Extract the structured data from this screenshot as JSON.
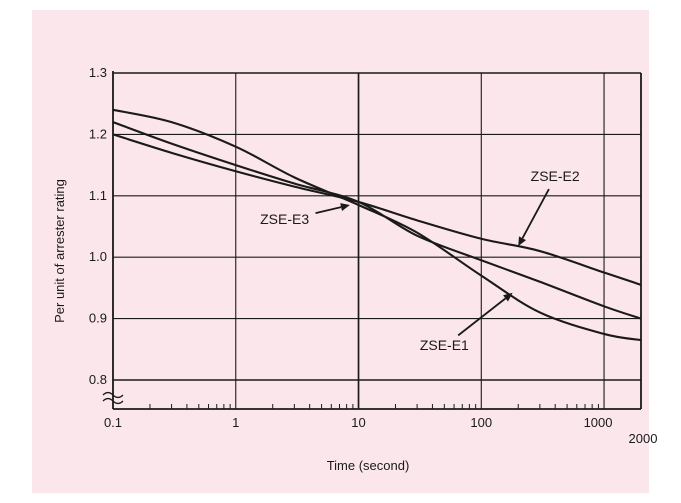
{
  "chart_data": {
    "type": "line",
    "title": "",
    "xlabel": "Time (second)",
    "ylabel": "Per unit of arrester rating",
    "x_scale": "log",
    "xlim": [
      0.1,
      2000
    ],
    "ylim": [
      0.8,
      1.3
    ],
    "x_ticks": [
      {
        "value": 0.1,
        "label": "0.1"
      },
      {
        "value": 1,
        "label": "1"
      },
      {
        "value": 10,
        "label": "10"
      },
      {
        "value": 100,
        "label": "100"
      },
      {
        "value": 1000,
        "label": "1000"
      },
      {
        "value": 2000,
        "label": "2000"
      }
    ],
    "y_ticks": [
      {
        "value": 0.8,
        "label": "0.8"
      },
      {
        "value": 0.9,
        "label": "0.9"
      },
      {
        "value": 1.0,
        "label": "1.0"
      },
      {
        "value": 1.1,
        "label": "1.1"
      },
      {
        "value": 1.2,
        "label": "1.2"
      },
      {
        "value": 1.3,
        "label": "1.3"
      }
    ],
    "grid": true,
    "axis_break": "y",
    "series": [
      {
        "name": "ZSE-E1",
        "x": [
          0.1,
          0.3,
          1,
          3,
          10,
          30,
          100,
          300,
          1000,
          2000
        ],
        "y": [
          1.24,
          1.22,
          1.18,
          1.13,
          1.085,
          1.04,
          0.97,
          0.91,
          0.875,
          0.865
        ]
      },
      {
        "name": "ZSE-E2",
        "x": [
          0.1,
          0.3,
          1,
          3,
          10,
          30,
          100,
          300,
          1000,
          2000
        ],
        "y": [
          1.2,
          1.17,
          1.14,
          1.115,
          1.09,
          1.06,
          1.03,
          1.01,
          0.975,
          0.955
        ]
      },
      {
        "name": "ZSE-E3",
        "x": [
          0.1,
          0.3,
          1,
          3,
          10,
          30,
          100,
          300,
          1000,
          2000
        ],
        "y": [
          1.22,
          1.185,
          1.15,
          1.12,
          1.09,
          1.035,
          0.995,
          0.96,
          0.92,
          0.9
        ]
      }
    ],
    "annotations": [
      {
        "series": "ZSE-E2",
        "text": "ZSE-E2",
        "text_at": [
          400,
          1.13
        ],
        "arrow_to": [
          200,
          1.018
        ]
      },
      {
        "series": "ZSE-E3",
        "text": "ZSE-E3",
        "text_at": [
          2.5,
          1.06
        ],
        "arrow_to": [
          8.5,
          1.085
        ]
      },
      {
        "series": "ZSE-E1",
        "text": "ZSE-E1",
        "text_at": [
          50,
          0.855
        ],
        "arrow_to": [
          180,
          0.942
        ]
      }
    ]
  }
}
